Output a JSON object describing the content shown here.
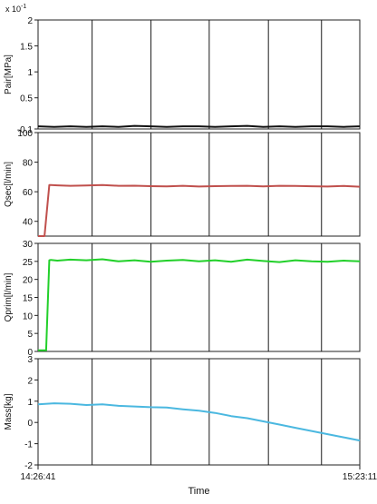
{
  "chart_data": [
    {
      "type": "line",
      "ylabel": "Pair[MPa]",
      "multiplier": "x 10",
      "multiplier_exp": "-1",
      "ylim": [
        -0.1,
        2
      ],
      "yticks": [
        "2",
        "1.5",
        "1",
        "0.5",
        "-0.1"
      ],
      "ytick_values": [
        2,
        1.5,
        1,
        0.5,
        -0.1
      ],
      "grid": "vertical",
      "series": [
        {
          "color": "#111111",
          "x": [
            0,
            0.05,
            0.1,
            0.15,
            0.2,
            0.25,
            0.3,
            0.35,
            0.4,
            0.45,
            0.5,
            0.55,
            0.6,
            0.65,
            0.7,
            0.75,
            0.8,
            0.85,
            0.9,
            0.95,
            1
          ],
          "y": [
            -0.05,
            -0.06,
            -0.05,
            -0.06,
            -0.05,
            -0.06,
            -0.04,
            -0.05,
            -0.06,
            -0.05,
            -0.05,
            -0.06,
            -0.05,
            -0.04,
            -0.06,
            -0.05,
            -0.06,
            -0.05,
            -0.05,
            -0.06,
            -0.05
          ]
        }
      ]
    },
    {
      "type": "line",
      "ylabel": "Qsec[l/min]",
      "ylim": [
        30,
        100
      ],
      "yticks": [
        "100",
        "80",
        "60",
        "40"
      ],
      "ytick_values": [
        100,
        80,
        60,
        40
      ],
      "grid": "vertical",
      "series": [
        {
          "color": "#c0504d",
          "x": [
            0,
            0.02,
            0.035,
            0.04,
            0.06,
            0.1,
            0.15,
            0.2,
            0.25,
            0.3,
            0.35,
            0.4,
            0.45,
            0.5,
            0.55,
            0.6,
            0.65,
            0.7,
            0.75,
            0.8,
            0.85,
            0.9,
            0.95,
            1
          ],
          "y": [
            30,
            30,
            64.5,
            64.5,
            64.3,
            64,
            64.2,
            64.5,
            64,
            64.1,
            63.8,
            63.6,
            64,
            63.5,
            63.8,
            63.9,
            64,
            63.6,
            64,
            63.9,
            63.7,
            63.5,
            63.9,
            63.4
          ]
        }
      ]
    },
    {
      "type": "line",
      "ylabel": "Qprim[l/min]",
      "ylim": [
        0,
        30
      ],
      "yticks": [
        "30",
        "25",
        "20",
        "15",
        "10",
        "5",
        "0"
      ],
      "ytick_values": [
        30,
        25,
        20,
        15,
        10,
        5,
        0
      ],
      "grid": "vertical",
      "series": [
        {
          "color": "#22d02a",
          "x": [
            0,
            0.025,
            0.035,
            0.04,
            0.06,
            0.1,
            0.15,
            0.2,
            0.25,
            0.3,
            0.35,
            0.4,
            0.45,
            0.5,
            0.55,
            0.6,
            0.65,
            0.7,
            0.75,
            0.8,
            0.85,
            0.9,
            0.95,
            1
          ],
          "y": [
            0.3,
            0.3,
            25.3,
            25.4,
            25.2,
            25.5,
            25.3,
            25.6,
            25,
            25.3,
            24.9,
            25.2,
            25.4,
            25,
            25.3,
            24.9,
            25.5,
            25.1,
            24.8,
            25.3,
            25,
            24.9,
            25.2,
            25
          ]
        }
      ]
    },
    {
      "type": "line",
      "ylabel": "Mass[kg]",
      "ylim": [
        -2,
        3
      ],
      "yticks": [
        "3",
        "2",
        "1",
        "0",
        "-1",
        "-2"
      ],
      "ytick_values": [
        3,
        2,
        1,
        0,
        -1,
        -2
      ],
      "xlabel": "Time",
      "xticks": [
        "14:26:41",
        "15:23:11"
      ],
      "grid": "vertical",
      "series": [
        {
          "color": "#4bb8e0",
          "x": [
            0,
            0.05,
            0.1,
            0.15,
            0.2,
            0.25,
            0.3,
            0.35,
            0.4,
            0.45,
            0.5,
            0.55,
            0.6,
            0.65,
            0.7,
            0.75,
            0.8,
            0.85,
            0.9,
            0.95,
            1
          ],
          "y": [
            0.85,
            0.9,
            0.88,
            0.82,
            0.85,
            0.78,
            0.75,
            0.72,
            0.7,
            0.62,
            0.55,
            0.45,
            0.3,
            0.2,
            0.05,
            -0.1,
            -0.25,
            -0.4,
            -0.55,
            -0.7,
            -0.85
          ]
        }
      ]
    }
  ]
}
